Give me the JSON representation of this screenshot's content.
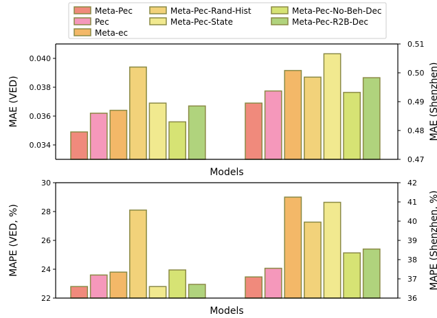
{
  "legend": {
    "entries": [
      {
        "name": "Meta-Pec",
        "color": "#f08a7c"
      },
      {
        "name": "Pec",
        "color": "#f598bb"
      },
      {
        "name": "Meta-ec",
        "color": "#f3b868"
      },
      {
        "name": "Meta-Pec-Rand-Hist",
        "color": "#f2d27a"
      },
      {
        "name": "Meta-Pec-State",
        "color": "#f1e98f"
      },
      {
        "name": "Meta-Pec-No-Beh-Dec",
        "color": "#d6e374"
      },
      {
        "name": "Meta-Pec-R2B-Dec",
        "color": "#b0d37d"
      }
    ]
  },
  "chart_data": [
    {
      "type": "bar",
      "xlabel": "Models",
      "ylabel_left": "MAE (VED)",
      "ylabel_right": "MAE (Shenzhen)",
      "ylim_left": [
        0.033,
        0.041
      ],
      "yticks_left": [
        "0.034",
        "0.036",
        "0.038",
        "0.040"
      ],
      "ylim_right": [
        0.47,
        0.51
      ],
      "yticks_right": [
        "0.47",
        "0.48",
        "0.49",
        "0.50",
        "0.51"
      ],
      "groups": [
        {
          "axis": "left",
          "values": [
            0.0349,
            0.0362,
            0.0364,
            0.0394,
            0.0369,
            0.0356,
            0.0367
          ]
        },
        {
          "axis": "right",
          "values": [
            0.4895,
            0.4937,
            0.5008,
            0.4985,
            0.5066,
            0.4932,
            0.4983
          ]
        }
      ],
      "series": [
        "Meta-Pec",
        "Pec",
        "Meta-ec",
        "Meta-Pec-Rand-Hist",
        "Meta-Pec-State",
        "Meta-Pec-No-Beh-Dec",
        "Meta-Pec-R2B-Dec"
      ]
    },
    {
      "type": "bar",
      "xlabel": "Models",
      "ylabel_left": "MAPE (VED, %)",
      "ylabel_right": "MAPE (Shenzhen, %)",
      "ylim_left": [
        22,
        30
      ],
      "yticks_left": [
        "22",
        "24",
        "26",
        "28",
        "30"
      ],
      "ylim_right": [
        36,
        42
      ],
      "yticks_right": [
        "36",
        "37",
        "38",
        "39",
        "40",
        "41",
        "42"
      ],
      "groups": [
        {
          "axis": "left",
          "values": [
            22.8,
            23.6,
            23.8,
            28.1,
            22.8,
            23.95,
            22.95
          ]
        },
        {
          "axis": "right",
          "values": [
            37.1,
            37.55,
            41.25,
            39.95,
            40.98,
            38.35,
            38.55
          ]
        }
      ],
      "series": [
        "Meta-Pec",
        "Pec",
        "Meta-ec",
        "Meta-Pec-Rand-Hist",
        "Meta-Pec-State",
        "Meta-Pec-No-Beh-Dec",
        "Meta-Pec-R2B-Dec"
      ]
    }
  ]
}
